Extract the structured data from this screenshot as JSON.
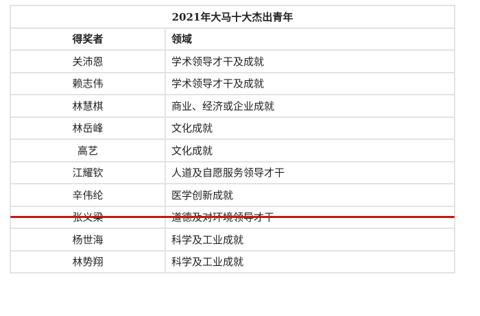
{
  "title": "2021年大马十大杰出青年",
  "headers": [
    "得奖者",
    "领域"
  ],
  "rows": [
    {
      "name": "关沛恩",
      "field": "学术领导才干及成就"
    },
    {
      "name": "赖志伟",
      "field": "学术领导才干及成就"
    },
    {
      "name": "林慧棋",
      "field": "商业、经济或企业成就"
    },
    {
      "name": "林岳峰",
      "field": "文化成就"
    },
    {
      "name": "高艺",
      "field": "文化成就"
    },
    {
      "name": "江耀钦",
      "field": "人道及自愿服务领导才干"
    },
    {
      "name": "辛伟纶",
      "field": "医学创新成就"
    },
    {
      "name": "张义梁",
      "field": "道德及对环境领导才干"
    },
    {
      "name": "杨世海",
      "field": "科学及工业成就"
    },
    {
      "name": "林势翔",
      "field": "科学及工业成就"
    }
  ],
  "colors": {
    "annotation_line": "#c0181a",
    "border": "#e3e3e3"
  }
}
